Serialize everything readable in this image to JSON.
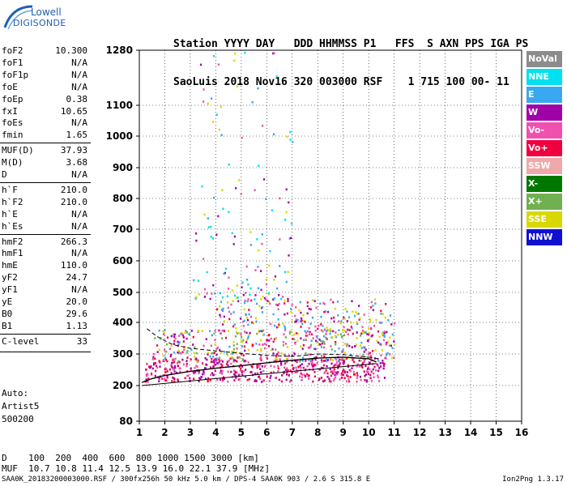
{
  "logo": {
    "line1": "Lowell",
    "line2": "DIGISONDE"
  },
  "header": {
    "line1": "Station YYYY DAY   DDD HHMMSS P1   FFS  S AXN PPS IGA PS",
    "line2": "SaoLuis 2018 Nov16 320 003000 RSF    1 715 100 00- 11"
  },
  "params": [
    {
      "label": "foF2",
      "value": "10.300"
    },
    {
      "label": "foF1",
      "value": "N/A"
    },
    {
      "label": "foF1p",
      "value": "N/A"
    },
    {
      "label": "foE",
      "value": "N/A"
    },
    {
      "label": "foEp",
      "value": "0.38"
    },
    {
      "label": "fxI",
      "value": "10.65"
    },
    {
      "label": "foEs",
      "value": "N/A"
    },
    {
      "label": "fmin",
      "value": "1.65"
    },
    {
      "label": "MUF(D)",
      "value": "37.93"
    },
    {
      "label": "M(D)",
      "value": "3.68"
    },
    {
      "label": "D",
      "value": "N/A"
    },
    {
      "label": "h`F",
      "value": "210.0"
    },
    {
      "label": "h`F2",
      "value": "210.0"
    },
    {
      "label": "h`E",
      "value": "N/A"
    },
    {
      "label": "h`Es",
      "value": "N/A"
    },
    {
      "label": "hmF2",
      "value": "266.3"
    },
    {
      "label": "hmF1",
      "value": "N/A"
    },
    {
      "label": "hmE",
      "value": "110.0"
    },
    {
      "label": "yF2",
      "value": "24.7"
    },
    {
      "label": "yF1",
      "value": "N/A"
    },
    {
      "label": "yE",
      "value": "20.0"
    },
    {
      "label": "B0",
      "value": "29.6"
    },
    {
      "label": "B1",
      "value": "1.13"
    },
    {
      "label": "C-level",
      "value": "33"
    }
  ],
  "auto": {
    "line1": "Auto:",
    "line2": "Artist5",
    "line3": "500200"
  },
  "legend": [
    {
      "label": "NoVal",
      "color": "#8c8c8c"
    },
    {
      "label": "NNE",
      "color": "#00e0f0"
    },
    {
      "label": "E",
      "color": "#3aa8f0"
    },
    {
      "label": "W",
      "color": "#a000a8"
    },
    {
      "label": "Vo-",
      "color": "#f050b0"
    },
    {
      "label": "Vo+",
      "color": "#f00040"
    },
    {
      "label": "SSW",
      "color": "#f0a8a8"
    },
    {
      "label": "X-",
      "color": "#007800"
    },
    {
      "label": "X+",
      "color": "#70b050"
    },
    {
      "label": "SSE",
      "color": "#d8d800"
    },
    {
      "label": "NNW",
      "color": "#1010d0"
    }
  ],
  "chart_data": {
    "type": "scatter",
    "x_ticks": [
      1,
      2,
      3,
      4,
      5,
      6,
      7,
      8,
      9,
      10,
      11,
      12,
      13,
      14,
      15,
      16
    ],
    "y_ticks": [
      80,
      200,
      300,
      400,
      500,
      600,
      700,
      800,
      900,
      1000,
      1100,
      1280
    ],
    "xlim": [
      1,
      16
    ],
    "ylim": [
      80,
      1280
    ],
    "y_scale": "sqrt-like",
    "profile_curve": [
      [
        1.1,
        210
      ],
      [
        1.5,
        222
      ],
      [
        2,
        232
      ],
      [
        3,
        245
      ],
      [
        4,
        255
      ],
      [
        5,
        263
      ],
      [
        6,
        272
      ],
      [
        7,
        280
      ],
      [
        8,
        287
      ],
      [
        9,
        290
      ],
      [
        10,
        285
      ],
      [
        10.3,
        275
      ]
    ],
    "trace_dashed": [
      [
        1.3,
        380
      ],
      [
        1.7,
        355
      ],
      [
        2.3,
        330
      ],
      [
        3,
        318
      ],
      [
        4,
        310
      ],
      [
        5,
        302
      ],
      [
        6,
        296
      ],
      [
        7,
        292
      ],
      [
        8,
        300
      ],
      [
        9,
        298
      ],
      [
        10,
        290
      ],
      [
        10.4,
        285
      ]
    ],
    "lower_line": [
      [
        1.1,
        200
      ],
      [
        10.3,
        270
      ]
    ],
    "clusters": [
      {
        "x": [
          1.2,
          10.6
        ],
        "y": [
          215,
          290
        ],
        "colors": [
          "Vo+",
          "Vo-",
          "W"
        ],
        "density": 520
      },
      {
        "x": [
          1.5,
          11
        ],
        "y": [
          280,
          380
        ],
        "colors": [
          "SSE",
          "Vo+",
          "W",
          "Vo-",
          "E",
          "X+"
        ],
        "density": 420
      },
      {
        "x": [
          4,
          11
        ],
        "y": [
          380,
          480
        ],
        "colors": [
          "SSE",
          "Vo-",
          "W",
          "Vo+",
          "E"
        ],
        "density": 180
      },
      {
        "x": [
          3,
          7
        ],
        "y": [
          480,
          1280
        ],
        "colors": [
          "SSE",
          "Vo-",
          "W",
          "E",
          "NNE"
        ],
        "density": 140
      }
    ],
    "xlabel": "",
    "ylabel": ""
  },
  "distance_row": "D    100  200  400  600  800 1000 1500 3000 [km]",
  "muf_row": "MUF  10.7 10.8 11.4 12.5 13.9 16.0 22.1 37.9 [MHz]",
  "footer": "SAA0K_20183200003000.RSF / 300fx256h 50 kHz 5.0 km / DPS-4 SAA0K 903 / 2.6 S 315.8 E",
  "version": "Ion2Png 1.3.17"
}
